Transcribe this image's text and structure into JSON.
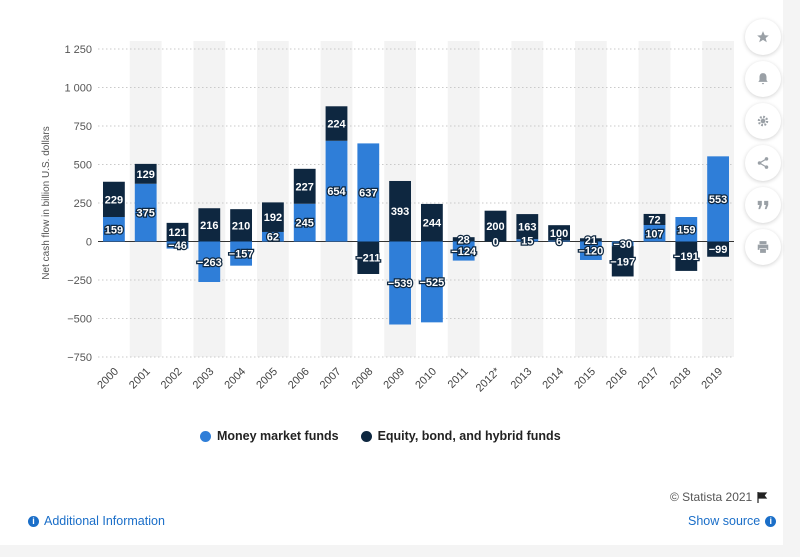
{
  "chart_data": {
    "type": "bar",
    "stacked": true,
    "categories": [
      "2000",
      "2001",
      "2002",
      "2003",
      "2004",
      "2005",
      "2006",
      "2007",
      "2008",
      "2009",
      "2010",
      "2011",
      "2012*",
      "2013",
      "2014",
      "2015",
      "2016",
      "2017",
      "2018",
      "2019"
    ],
    "series": [
      {
        "name": "Money market funds",
        "color": "#2f7ed8",
        "values": [
          159,
          375,
          -46,
          -263,
          -157,
          62,
          245,
          654,
          637,
          -539,
          -525,
          -124,
          0,
          15,
          6,
          -120,
          -30,
          107,
          159,
          553
        ]
      },
      {
        "name": "Equity, bond, and hybrid funds",
        "color": "#0e2740",
        "values": [
          229,
          129,
          121,
          216,
          210,
          192,
          227,
          224,
          -211,
          393,
          244,
          28,
          200,
          163,
          100,
          21,
          -197,
          72,
          -191,
          -99
        ]
      }
    ],
    "ylabel": "Net cash flow in billion U.S. dollars",
    "ylim": [
      -750,
      1250
    ],
    "yticks": [
      -750,
      -500,
      -250,
      0,
      250,
      500,
      750,
      1000,
      1250
    ],
    "ytick_labels": [
      "−750",
      "−500",
      "−250",
      "0",
      "250",
      "500",
      "750",
      "1 000",
      "1 250"
    ],
    "grid": true,
    "legend_position": "bottom"
  },
  "legend": {
    "money_market": "Money market funds",
    "equity": "Equity, bond, and hybrid funds"
  },
  "footer": {
    "copyright": "© Statista 2021",
    "additional_info": "Additional Information",
    "show_source": "Show source"
  },
  "colors": {
    "accent": "#1a6ec8",
    "money": "#2f7ed8",
    "equity": "#0e2740"
  },
  "sidebar_icons": [
    "star-icon",
    "bell-icon",
    "gear-icon",
    "share-icon",
    "quote-icon",
    "print-icon"
  ]
}
